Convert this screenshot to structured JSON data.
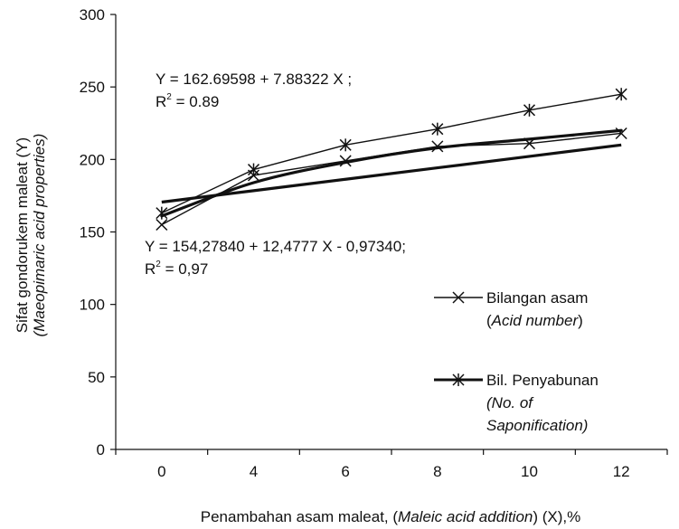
{
  "chart_data": {
    "type": "line",
    "title": "",
    "xlabel": {
      "parts": [
        {
          "text": "Penambahan asam maleat, (",
          "italic": false
        },
        {
          "text": "Maleic acid addition",
          "italic": true
        },
        {
          "text": ") (X),%",
          "italic": false
        }
      ]
    },
    "ylabel": {
      "line1": "Sifat gondorukem maleat (Y)",
      "line2": "(Maeopimaric acid properties)"
    },
    "categories": [
      "0",
      "4",
      "6",
      "8",
      "10",
      "12"
    ],
    "ylim": [
      0,
      300
    ],
    "yticks": [
      "0",
      "50",
      "100",
      "150",
      "200",
      "250",
      "300"
    ],
    "grid": false,
    "legend_position": "right",
    "series": [
      {
        "name_line1": "Bilangan asam",
        "name_line2": "(Acid number)",
        "name_line2_italic": "Acid number",
        "marker": "x",
        "stroke_width": "thin",
        "values": [
          155,
          189,
          199,
          209,
          211,
          218
        ]
      },
      {
        "name_line1": "Bil. Penyabunan",
        "name_line2": "(No. of",
        "name_line3": "Saponification)",
        "marker": "star",
        "stroke_width": "thin",
        "values": [
          163,
          193,
          210,
          221,
          234,
          245
        ]
      }
    ],
    "trendlines": [
      {
        "kind": "linear",
        "intercept": 162.69598,
        "slope": 7.88322,
        "stroke_width": "thick"
      },
      {
        "kind": "log-like",
        "values": [
          161,
          184,
          198,
          208,
          214,
          220
        ],
        "stroke_width": "thick"
      }
    ],
    "annotations": [
      {
        "line1": "Y = 162.69598 + 7.88322 X ;",
        "line2": "R",
        "sup": "2",
        "line2_rest": " = 0.89"
      },
      {
        "line1": "Y = 154,27840 + 12,4777 X - 0,97340;",
        "line2": "R",
        "sup": "2",
        "line2_rest": " = 0,97"
      }
    ]
  }
}
